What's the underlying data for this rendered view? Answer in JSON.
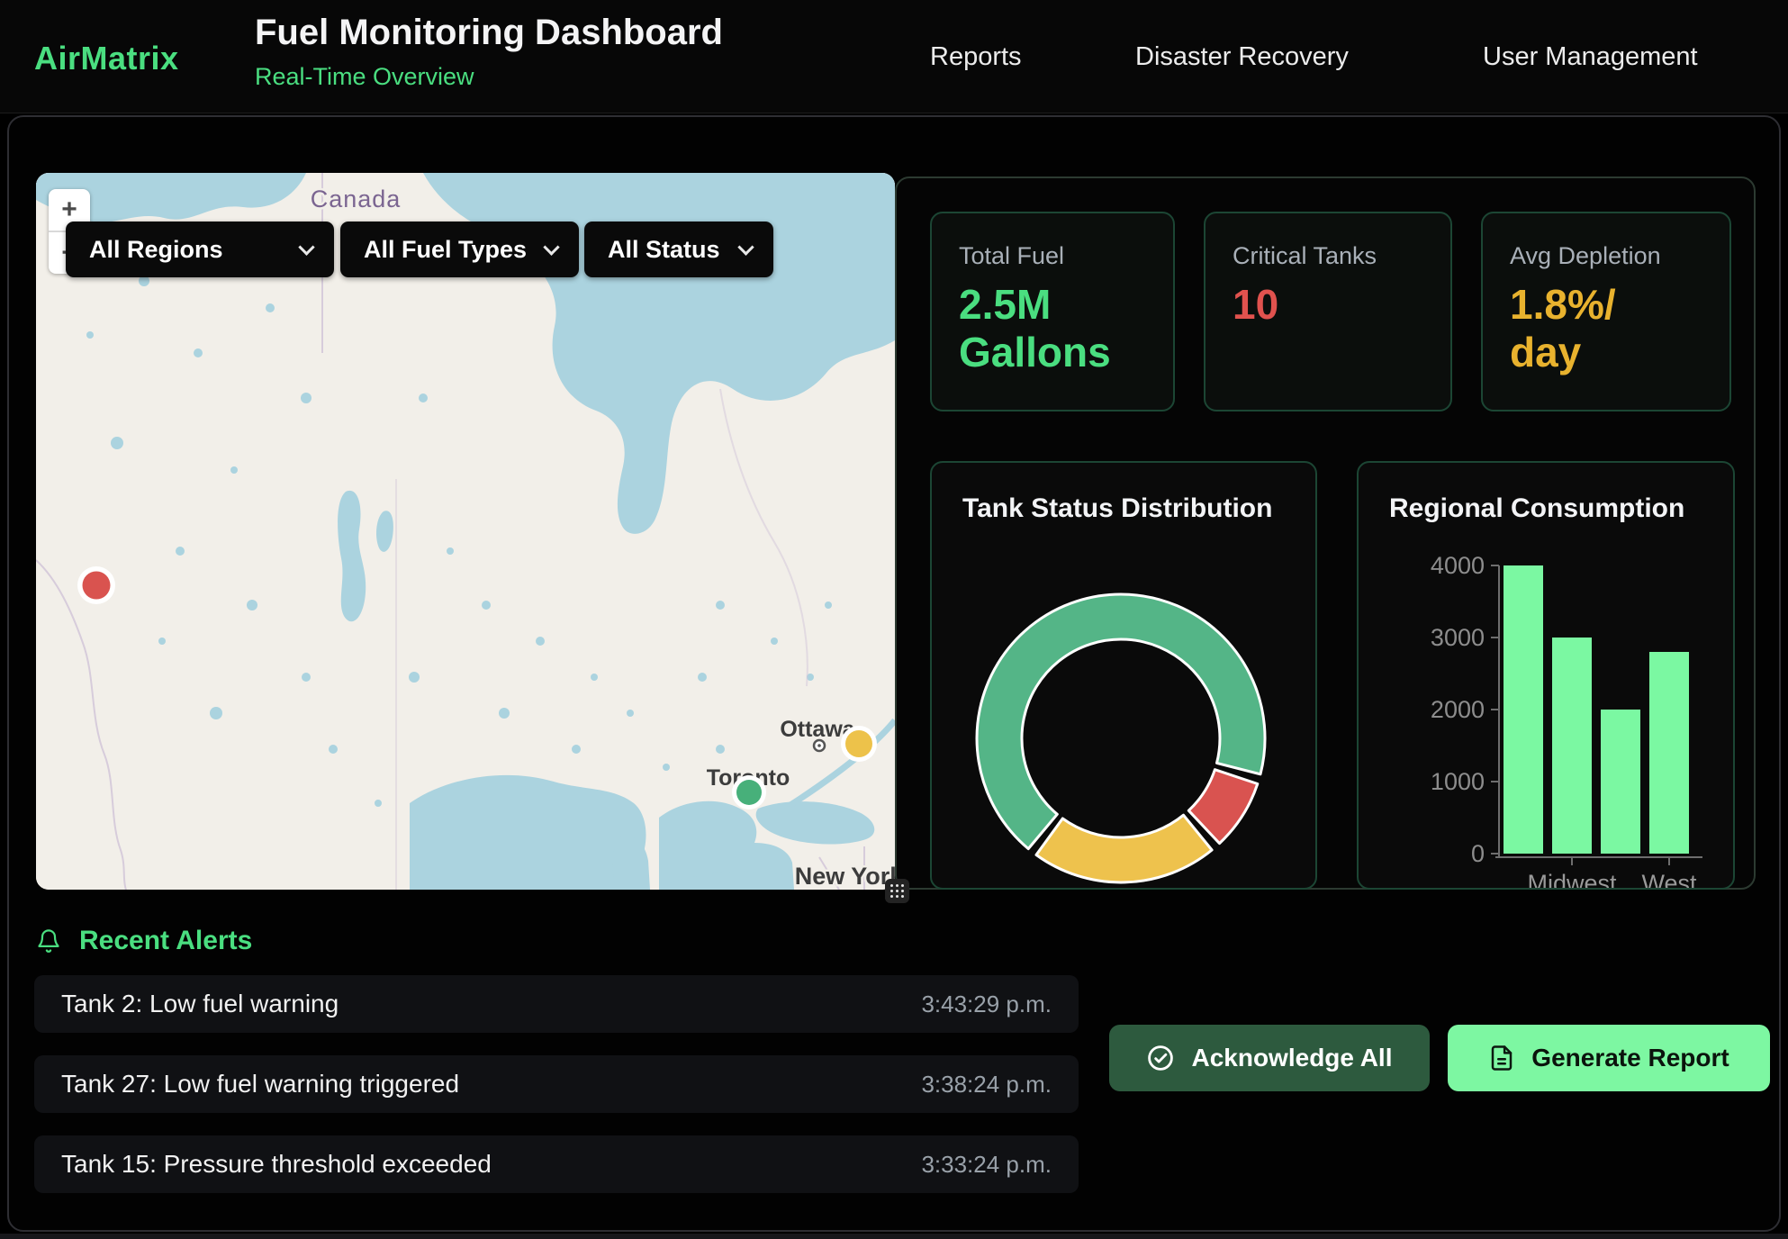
{
  "header": {
    "logo": "AirMatrix",
    "title": "Fuel Monitoring Dashboard",
    "subtitle": "Real-Time Overview",
    "nav": [
      {
        "label": "Reports"
      },
      {
        "label": "Disaster Recovery"
      },
      {
        "label": "User Management"
      }
    ]
  },
  "map": {
    "filters": [
      {
        "value": "All Regions"
      },
      {
        "value": "All Fuel Types"
      },
      {
        "value": "All Status"
      }
    ],
    "zoom_in_label": "+",
    "zoom_out_label": "−",
    "labels": {
      "country": "Canada",
      "cities": [
        "Ottawa",
        "Toronto",
        "New York"
      ]
    },
    "markers": [
      {
        "name": "critical",
        "color": "#d9534f"
      },
      {
        "name": "warning",
        "color": "#edc24a"
      },
      {
        "name": "normal",
        "color": "#47b07a"
      }
    ]
  },
  "stats": [
    {
      "label": "Total Fuel",
      "value": "2.5M\nGallons"
    },
    {
      "label": "Critical Tanks",
      "value": "10"
    },
    {
      "label": "Avg Depletion",
      "value": "1.8%/\nday"
    }
  ],
  "charts": {
    "donut_title": "Tank Status Distribution",
    "bar_title": "Regional Consumption"
  },
  "chart_data": [
    {
      "type": "pie",
      "variant": "donut",
      "title": "Tank Status Distribution",
      "legend": "none",
      "start_angle_deg": 218,
      "segments": [
        {
          "label": "green-normal",
          "value": 69,
          "color": "#54b587"
        },
        {
          "label": "red-critical",
          "value": 9,
          "color": "#d95350"
        },
        {
          "label": "yellow-warning",
          "value": 22,
          "color": "#eec24d"
        }
      ]
    },
    {
      "type": "bar",
      "title": "Regional Consumption",
      "categories": [
        "",
        "Midwest",
        "",
        "West"
      ],
      "values": [
        4000,
        3000,
        2000,
        2800
      ],
      "ylim": [
        0,
        4000
      ],
      "yticks": [
        0,
        1000,
        2000,
        3000,
        4000
      ],
      "bar_color": "#7bf8a2",
      "grid": false
    }
  ],
  "alerts": {
    "heading": "Recent Alerts",
    "items": [
      {
        "text": "Tank 2: Low fuel warning",
        "time": "3:43:29 p.m."
      },
      {
        "text": "Tank 27: Low fuel warning triggered",
        "time": "3:38:24 p.m."
      },
      {
        "text": "Tank 15: Pressure threshold exceeded",
        "time": "3:33:24 p.m."
      }
    ]
  },
  "actions": [
    {
      "label": "Acknowledge All"
    },
    {
      "label": "Generate Report"
    }
  ],
  "colors": {
    "accent_green": "#4ade80",
    "critical_red": "#e0524e",
    "warning_yellow": "#e8b22e",
    "donut_green": "#54b587",
    "donut_yellow": "#eec24d",
    "donut_red": "#d95350",
    "bar_green": "#7bf8a2",
    "button_bright_green": "#7df7a2",
    "button_dark_green": "#2d5a3e"
  }
}
